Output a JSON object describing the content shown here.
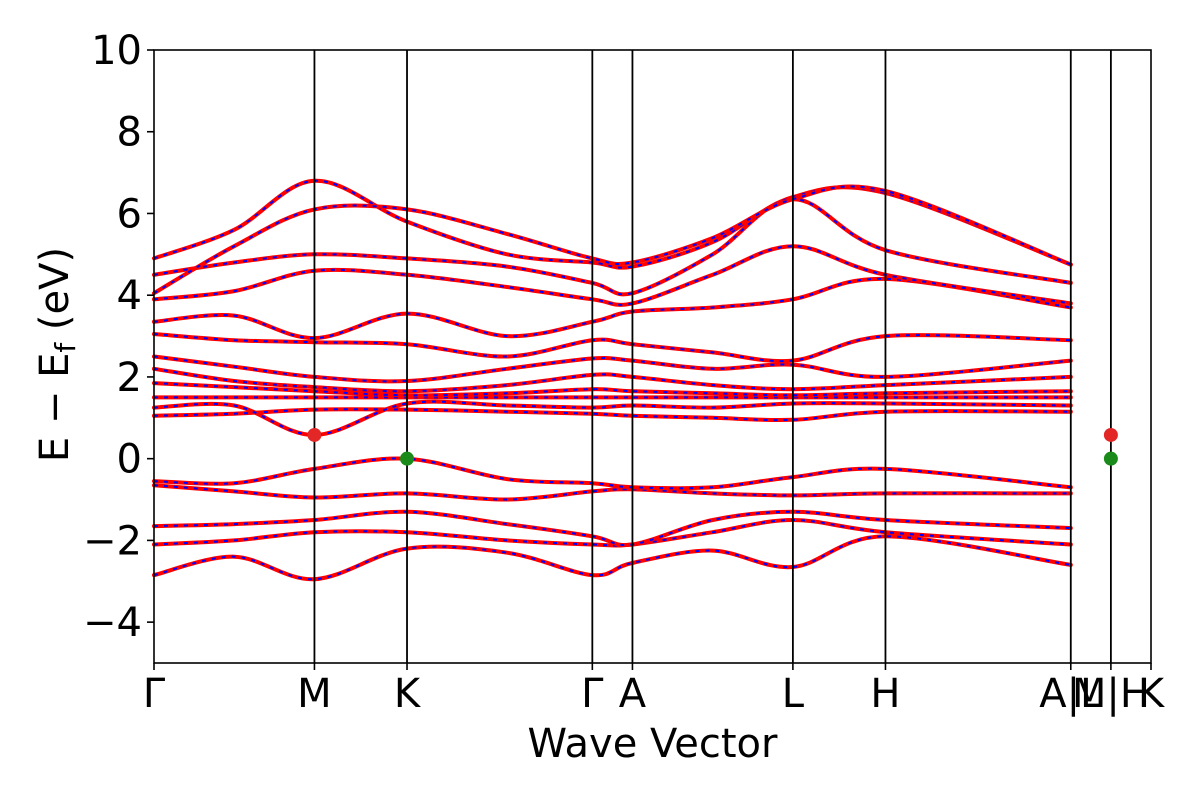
{
  "chart_data": {
    "type": "line",
    "title": "",
    "xlabel": "Wave Vector",
    "ylabel": "E − E",
    "ylabel_subscript": "f",
    "ylabel_unit": " (eV)",
    "ylim": [
      -5,
      10
    ],
    "yticks": [
      -4,
      -2,
      0,
      2,
      4,
      6,
      8,
      10
    ],
    "ytick_labels": [
      "−4",
      "−2",
      "0",
      "2",
      "4",
      "6",
      "8",
      "10"
    ],
    "x_path_positions": [
      0,
      1.0,
      1.577,
      2.732,
      2.982,
      3.982,
      4.559,
      5.714,
      5.964,
      6.214
    ],
    "x_path_labels": [
      "Γ",
      "M",
      "K",
      "Γ",
      "A",
      "L",
      "H",
      "A|L",
      "M|H",
      "K"
    ],
    "xlim": [
      0,
      6.214
    ],
    "colors": {
      "band_primary": "#ff0000",
      "band_secondary": "#0000ff",
      "cbm_marker": "#e32626",
      "vbm_marker": "#1a8a1a",
      "kpath_line": "#000000"
    },
    "markers": [
      {
        "type": "CBM",
        "x": 1.0,
        "y": 0.58
      },
      {
        "type": "VBM",
        "x": 1.577,
        "y": 0.0
      },
      {
        "type": "CBM",
        "x": 5.964,
        "y": 0.58
      },
      {
        "type": "VBM",
        "x": 5.964,
        "y": 0.0
      }
    ],
    "bands": [
      {
        "name": "",
        "values": [
          [
            0,
            -2.85
          ],
          [
            0.5,
            -2.4
          ],
          [
            1.0,
            -2.95
          ],
          [
            1.577,
            -2.2
          ],
          [
            2.2,
            -2.3
          ],
          [
            2.732,
            -2.85
          ],
          [
            2.982,
            -2.55
          ],
          [
            3.482,
            -2.25
          ],
          [
            3.982,
            -2.65
          ],
          [
            4.559,
            -1.9
          ],
          [
            5.714,
            -2.6
          ]
        ]
      },
      {
        "name": "",
        "values": [
          [
            0,
            -2.1
          ],
          [
            0.5,
            -2.0
          ],
          [
            1.0,
            -1.8
          ],
          [
            1.577,
            -1.8
          ],
          [
            2.2,
            -2.0
          ],
          [
            2.732,
            -2.1
          ],
          [
            2.982,
            -2.1
          ],
          [
            3.482,
            -1.8
          ],
          [
            3.982,
            -1.5
          ],
          [
            4.559,
            -1.8
          ],
          [
            5.714,
            -2.1
          ]
        ]
      },
      {
        "name": "",
        "values": [
          [
            0,
            -1.65
          ],
          [
            0.5,
            -1.6
          ],
          [
            1.0,
            -1.5
          ],
          [
            1.577,
            -1.3
          ],
          [
            2.2,
            -1.6
          ],
          [
            2.732,
            -1.9
          ],
          [
            2.982,
            -2.1
          ],
          [
            3.482,
            -1.5
          ],
          [
            3.982,
            -1.3
          ],
          [
            4.559,
            -1.5
          ],
          [
            5.714,
            -1.7
          ]
        ]
      },
      {
        "name": "",
        "values": [
          [
            0,
            -0.65
          ],
          [
            0.5,
            -0.8
          ],
          [
            1.0,
            -0.95
          ],
          [
            1.577,
            -0.85
          ],
          [
            2.2,
            -1.0
          ],
          [
            2.732,
            -0.8
          ],
          [
            2.982,
            -0.75
          ],
          [
            3.482,
            -0.85
          ],
          [
            3.982,
            -0.9
          ],
          [
            4.559,
            -0.85
          ],
          [
            5.714,
            -0.85
          ]
        ]
      },
      {
        "name": "",
        "values": [
          [
            0,
            -0.55
          ],
          [
            0.5,
            -0.6
          ],
          [
            1.0,
            -0.25
          ],
          [
            1.577,
            0.0
          ],
          [
            2.2,
            -0.5
          ],
          [
            2.732,
            -0.6
          ],
          [
            2.982,
            -0.7
          ],
          [
            3.482,
            -0.7
          ],
          [
            3.982,
            -0.45
          ],
          [
            4.559,
            -0.25
          ],
          [
            5.714,
            -0.7
          ]
        ]
      },
      {
        "name": "",
        "values": [
          [
            0,
            1.05
          ],
          [
            0.5,
            1.1
          ],
          [
            1.0,
            1.2
          ],
          [
            1.577,
            1.2
          ],
          [
            2.2,
            1.15
          ],
          [
            2.732,
            1.1
          ],
          [
            2.982,
            1.05
          ],
          [
            3.482,
            1.0
          ],
          [
            3.982,
            0.95
          ],
          [
            4.559,
            1.15
          ],
          [
            5.714,
            1.15
          ]
        ]
      },
      {
        "name": "",
        "values": [
          [
            0,
            1.25
          ],
          [
            0.5,
            1.3
          ],
          [
            1.0,
            0.58
          ],
          [
            1.577,
            1.35
          ],
          [
            2.2,
            1.3
          ],
          [
            2.732,
            1.25
          ],
          [
            2.982,
            1.3
          ],
          [
            3.482,
            1.25
          ],
          [
            3.982,
            1.35
          ],
          [
            4.559,
            1.35
          ],
          [
            5.714,
            1.3
          ]
        ]
      },
      {
        "name": "",
        "values": [
          [
            0,
            1.5
          ],
          [
            0.5,
            1.5
          ],
          [
            1.0,
            1.5
          ],
          [
            1.577,
            1.5
          ],
          [
            2.2,
            1.5
          ],
          [
            2.732,
            1.5
          ],
          [
            2.982,
            1.5
          ],
          [
            3.482,
            1.5
          ],
          [
            3.982,
            1.5
          ],
          [
            4.559,
            1.5
          ],
          [
            5.714,
            1.5
          ]
        ]
      },
      {
        "name": "",
        "values": [
          [
            0,
            1.85
          ],
          [
            0.5,
            1.75
          ],
          [
            1.0,
            1.65
          ],
          [
            1.577,
            1.55
          ],
          [
            2.2,
            1.6
          ],
          [
            2.732,
            1.7
          ],
          [
            2.982,
            1.65
          ],
          [
            3.482,
            1.6
          ],
          [
            3.982,
            1.55
          ],
          [
            4.559,
            1.6
          ],
          [
            5.714,
            1.65
          ]
        ]
      },
      {
        "name": "",
        "values": [
          [
            0,
            2.2
          ],
          [
            0.5,
            1.9
          ],
          [
            1.0,
            1.75
          ],
          [
            1.577,
            1.65
          ],
          [
            2.2,
            1.8
          ],
          [
            2.732,
            2.05
          ],
          [
            2.982,
            2.0
          ],
          [
            3.482,
            1.8
          ],
          [
            3.982,
            1.7
          ],
          [
            4.559,
            1.8
          ],
          [
            5.714,
            2.0
          ]
        ]
      },
      {
        "name": "",
        "values": [
          [
            0,
            2.5
          ],
          [
            0.5,
            2.25
          ],
          [
            1.0,
            2.0
          ],
          [
            1.577,
            1.9
          ],
          [
            2.2,
            2.2
          ],
          [
            2.732,
            2.45
          ],
          [
            2.982,
            2.4
          ],
          [
            3.482,
            2.2
          ],
          [
            3.982,
            2.3
          ],
          [
            4.559,
            2.0
          ],
          [
            5.714,
            2.4
          ]
        ]
      },
      {
        "name": "",
        "values": [
          [
            0,
            3.05
          ],
          [
            0.5,
            2.9
          ],
          [
            1.0,
            2.85
          ],
          [
            1.577,
            2.8
          ],
          [
            2.2,
            2.5
          ],
          [
            2.732,
            2.9
          ],
          [
            2.982,
            2.8
          ],
          [
            3.482,
            2.6
          ],
          [
            3.982,
            2.4
          ],
          [
            4.559,
            3.0
          ],
          [
            5.714,
            2.9
          ]
        ]
      },
      {
        "name": "",
        "values": [
          [
            0,
            3.35
          ],
          [
            0.5,
            3.5
          ],
          [
            1.0,
            2.95
          ],
          [
            1.577,
            3.55
          ],
          [
            2.2,
            3.0
          ],
          [
            2.732,
            3.35
          ],
          [
            2.982,
            3.6
          ],
          [
            3.482,
            3.7
          ],
          [
            3.982,
            3.9
          ],
          [
            4.559,
            4.4
          ],
          [
            5.714,
            3.7
          ]
        ]
      },
      {
        "name": "",
        "values": [
          [
            0,
            3.9
          ],
          [
            0.5,
            4.1
          ],
          [
            1.0,
            4.6
          ],
          [
            1.577,
            4.5
          ],
          [
            2.2,
            4.2
          ],
          [
            2.732,
            3.9
          ],
          [
            2.982,
            3.8
          ],
          [
            3.482,
            4.5
          ],
          [
            3.982,
            5.2
          ],
          [
            4.559,
            4.5
          ],
          [
            5.714,
            3.8
          ]
        ]
      },
      {
        "name": "",
        "values": [
          [
            0,
            4.5
          ],
          [
            0.5,
            4.8
          ],
          [
            1.0,
            5.0
          ],
          [
            1.577,
            4.9
          ],
          [
            2.2,
            4.7
          ],
          [
            2.732,
            4.3
          ],
          [
            2.982,
            4.05
          ],
          [
            3.482,
            5.0
          ],
          [
            3.982,
            6.35
          ],
          [
            4.559,
            5.1
          ],
          [
            5.714,
            4.3
          ]
        ]
      },
      {
        "name": "",
        "values": [
          [
            0,
            4.9
          ],
          [
            0.5,
            5.6
          ],
          [
            1.0,
            6.8
          ],
          [
            1.577,
            5.8
          ],
          [
            2.2,
            5.0
          ],
          [
            2.732,
            4.8
          ],
          [
            2.982,
            4.7
          ],
          [
            3.482,
            5.3
          ],
          [
            3.982,
            6.4
          ],
          [
            4.559,
            6.5
          ],
          [
            5.714,
            4.75
          ]
        ]
      },
      {
        "name": "",
        "values": [
          [
            0,
            4.05
          ],
          [
            0.5,
            5.2
          ],
          [
            1.0,
            6.1
          ],
          [
            1.577,
            6.1
          ],
          [
            2.2,
            5.5
          ],
          [
            2.732,
            4.9
          ],
          [
            2.982,
            4.8
          ],
          [
            3.482,
            5.4
          ],
          [
            3.982,
            6.35
          ],
          [
            4.559,
            6.55
          ],
          [
            5.714,
            4.75
          ]
        ]
      }
    ]
  }
}
